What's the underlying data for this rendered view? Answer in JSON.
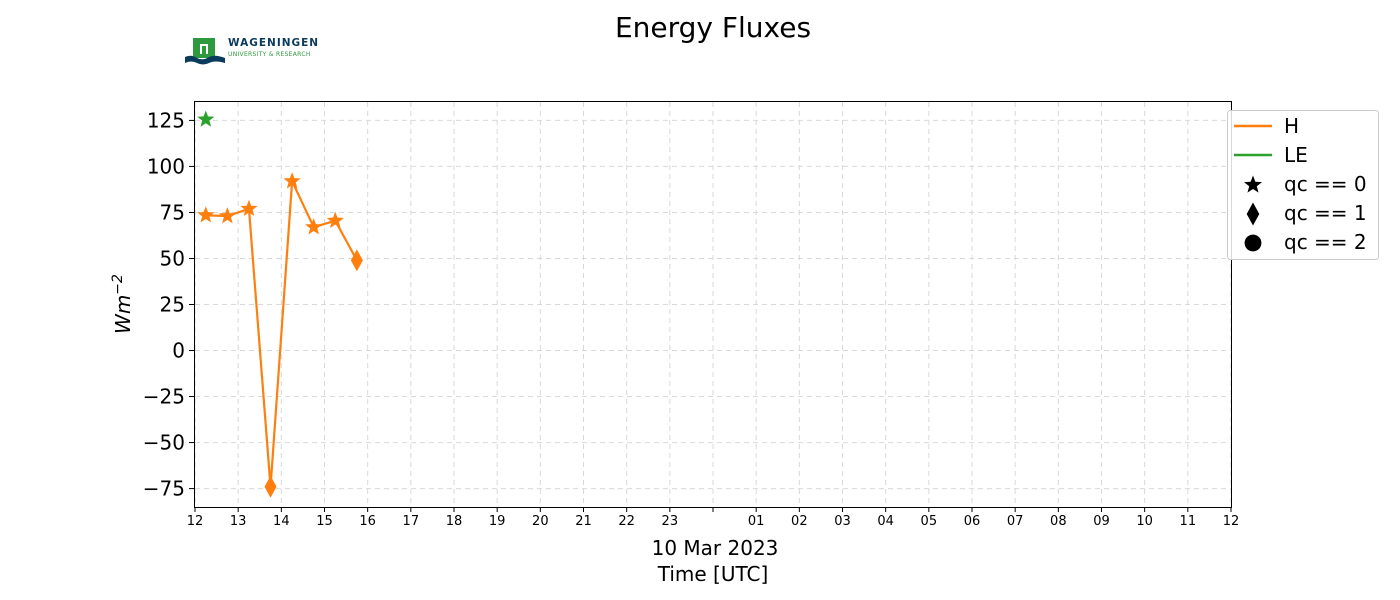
{
  "logo": {
    "name": "WAGENINGEN",
    "subtitle": "UNIVERSITY & RESEARCH"
  },
  "chart_data": {
    "type": "line",
    "title": "Energy Fluxes",
    "ylabel_base": "Wm",
    "ylabel_exp": "−2",
    "xlabel_date": "10 Mar 2023",
    "xlabel": "Time [UTC]",
    "ylim": [
      -85,
      135
    ],
    "yticks": [
      125,
      100,
      75,
      50,
      25,
      0,
      -25,
      -50,
      -75
    ],
    "ytick_labels": [
      "125",
      "100",
      "75",
      "50",
      "25",
      "0",
      "−25",
      "−50",
      "−75"
    ],
    "xlim_hours": [
      12,
      36
    ],
    "xtick_labels": [
      "12",
      "13",
      "14",
      "15",
      "16",
      "17",
      "18",
      "19",
      "20",
      "21",
      "22",
      "23",
      "",
      "01",
      "02",
      "03",
      "04",
      "05",
      "06",
      "07",
      "08",
      "09",
      "10",
      "11",
      "12"
    ],
    "grid": true,
    "legend_position": "outside top-right",
    "legend": [
      {
        "label": "H",
        "kind": "line",
        "color": "#ff7f0e"
      },
      {
        "label": "LE",
        "kind": "line",
        "color": "#2ca02c"
      },
      {
        "label": "qc == 0",
        "kind": "marker",
        "marker": "star"
      },
      {
        "label": "qc == 1",
        "kind": "marker",
        "marker": "diamond"
      },
      {
        "label": "qc == 2",
        "kind": "marker",
        "marker": "circle"
      }
    ],
    "series": [
      {
        "name": "H",
        "color": "#ff7f0e",
        "points": [
          {
            "time": "12:15",
            "value": 73.5,
            "qc": 0
          },
          {
            "time": "12:45",
            "value": 73,
            "qc": 0
          },
          {
            "time": "13:15",
            "value": 77,
            "qc": 0
          },
          {
            "time": "13:45",
            "value": -74,
            "qc": 1
          },
          {
            "time": "14:15",
            "value": 92,
            "qc": 0
          },
          {
            "time": "14:45",
            "value": 67,
            "qc": 0
          },
          {
            "time": "15:15",
            "value": 70.5,
            "qc": 0
          },
          {
            "time": "15:45",
            "value": 49,
            "qc": 1
          }
        ]
      },
      {
        "name": "LE",
        "color": "#2ca02c",
        "points": [
          {
            "time": "12:15",
            "value": 125.5,
            "qc": 0
          }
        ]
      }
    ]
  }
}
